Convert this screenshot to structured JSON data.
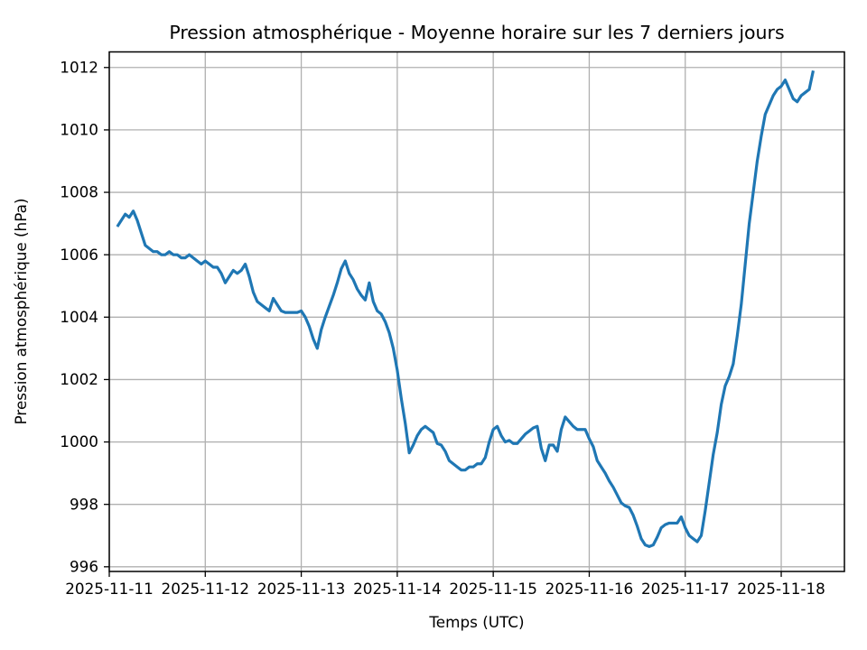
{
  "figure": {
    "background": "#ffffff"
  },
  "chart_data": {
    "type": "line",
    "title": "Pression atmosphérique - Moyenne horaire sur les 7 derniers jours",
    "xlabel": "Temps (UTC)",
    "ylabel": "Pression atmosphérique (hPa)",
    "grid": true,
    "legend": "none",
    "line_color": "#1f77b4",
    "grid_color": "#b0b0b0",
    "x_tick_labels": [
      "2025-11-11",
      "2025-11-12",
      "2025-11-13",
      "2025-11-14",
      "2025-11-15",
      "2025-11-16",
      "2025-11-17",
      "2025-11-18"
    ],
    "x_tick_hours": [
      0,
      24,
      48,
      72,
      96,
      120,
      144,
      168
    ],
    "y_ticks": [
      996,
      998,
      1000,
      1002,
      1004,
      1006,
      1008,
      1010,
      1012
    ],
    "xlim_hours": [
      0,
      183.8
    ],
    "ylim": [
      995.85,
      1012.5
    ],
    "series": [
      {
        "name": "Pression atmosphérique moyenne horaire",
        "start": "2025-11-11 02:00 UTC",
        "start_hour_offset": 2,
        "interval_hours": 1,
        "values": [
          1006.9,
          1007.1,
          1007.3,
          1007.2,
          1007.4,
          1007.1,
          1006.7,
          1006.3,
          1006.2,
          1006.1,
          1006.1,
          1006.0,
          1006.0,
          1006.1,
          1006.0,
          1006.0,
          1005.9,
          1005.9,
          1006.0,
          1005.9,
          1005.8,
          1005.7,
          1005.8,
          1005.7,
          1005.6,
          1005.6,
          1005.4,
          1005.1,
          1005.3,
          1005.5,
          1005.4,
          1005.5,
          1005.7,
          1005.3,
          1004.8,
          1004.5,
          1004.4,
          1004.3,
          1004.2,
          1004.6,
          1004.4,
          1004.2,
          1004.15,
          1004.15,
          1004.15,
          1004.15,
          1004.2,
          1004.0,
          1003.7,
          1003.3,
          1003.0,
          1003.6,
          1004.0,
          1004.35,
          1004.7,
          1005.1,
          1005.55,
          1005.8,
          1005.4,
          1005.2,
          1004.9,
          1004.7,
          1004.55,
          1005.1,
          1004.5,
          1004.2,
          1004.1,
          1003.85,
          1003.5,
          1003.0,
          1002.3,
          1001.4,
          1000.6,
          999.65,
          999.9,
          1000.2,
          1000.4,
          1000.5,
          1000.4,
          1000.3,
          999.95,
          999.9,
          999.7,
          999.4,
          999.3,
          999.2,
          999.1,
          999.1,
          999.2,
          999.2,
          999.3,
          999.3,
          999.5,
          1000.0,
          1000.4,
          1000.5,
          1000.2,
          1000.0,
          1000.05,
          999.95,
          999.95,
          1000.1,
          1000.25,
          1000.35,
          1000.45,
          1000.5,
          999.8,
          999.4,
          999.9,
          999.9,
          999.7,
          1000.4,
          1000.8,
          1000.65,
          1000.5,
          1000.4,
          1000.4,
          1000.4,
          1000.1,
          999.85,
          999.4,
          999.2,
          999.0,
          998.75,
          998.55,
          998.3,
          998.05,
          997.95,
          997.9,
          997.65,
          997.3,
          996.9,
          996.7,
          996.65,
          996.7,
          996.95,
          997.25,
          997.35,
          997.4,
          997.4,
          997.4,
          997.6,
          997.25,
          997.0,
          996.9,
          996.8,
          997.0,
          997.8,
          998.7,
          999.6,
          1000.3,
          1001.2,
          1001.8,
          1002.1,
          1002.5,
          1003.4,
          1004.4,
          1005.7,
          1007.0,
          1008.0,
          1009.0,
          1009.8,
          1010.5,
          1010.8,
          1011.1,
          1011.3,
          1011.4,
          1011.6,
          1011.3,
          1011.0,
          1010.9,
          1011.1,
          1011.2,
          1011.3,
          1011.9
        ]
      }
    ]
  }
}
